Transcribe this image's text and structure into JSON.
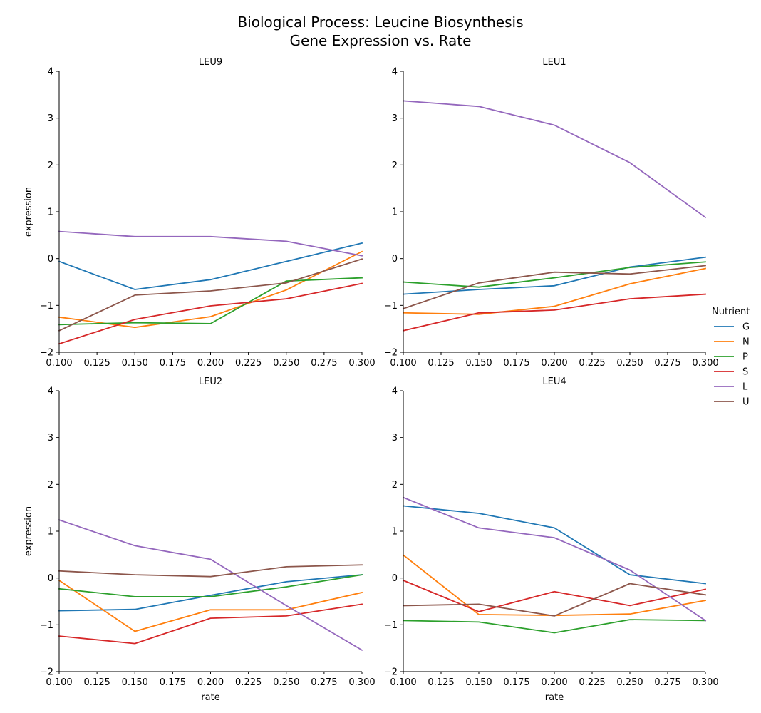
{
  "title_line1": "Biological Process: Leucine Biosynthesis",
  "title_line2": "Gene Expression vs. Rate",
  "legend_title": "Nutrient",
  "xlabel": "rate",
  "ylabel": "expression",
  "chart_data": {
    "type": "line",
    "xlim": [
      0.1,
      0.3
    ],
    "ylim": [
      -2,
      4
    ],
    "xticks": [
      "0.100",
      "0.125",
      "0.150",
      "0.175",
      "0.200",
      "0.225",
      "0.250",
      "0.275",
      "0.300"
    ],
    "yticks": [
      "4",
      "3",
      "2",
      "1",
      "0",
      "−1",
      "−2"
    ],
    "x": [
      0.1,
      0.15,
      0.2,
      0.25,
      0.3
    ],
    "colors": {
      "G": "#1f77b4",
      "N": "#ff7f0e",
      "P": "#2ca02c",
      "S": "#d62728",
      "L": "#9467bd",
      "U": "#8c564b"
    },
    "legend": [
      "G",
      "N",
      "P",
      "S",
      "L",
      "U"
    ],
    "panels": [
      {
        "title": "LEU9",
        "series": [
          {
            "name": "G",
            "values": [
              -0.06,
              -0.66,
              -0.45,
              -0.06,
              0.33
            ]
          },
          {
            "name": "N",
            "values": [
              -1.25,
              -1.47,
              -1.24,
              -0.67,
              0.15
            ]
          },
          {
            "name": "P",
            "values": [
              -1.41,
              -1.37,
              -1.39,
              -0.48,
              -0.41
            ]
          },
          {
            "name": "S",
            "values": [
              -1.82,
              -1.3,
              -1.01,
              -0.86,
              -0.53
            ]
          },
          {
            "name": "L",
            "values": [
              0.58,
              0.47,
              0.47,
              0.37,
              0.06
            ]
          },
          {
            "name": "U",
            "values": [
              -1.54,
              -0.78,
              -0.69,
              -0.52,
              -0.01
            ]
          }
        ]
      },
      {
        "title": "LEU1",
        "series": [
          {
            "name": "G",
            "values": [
              -0.76,
              -0.66,
              -0.58,
              -0.18,
              0.03
            ]
          },
          {
            "name": "N",
            "values": [
              -1.16,
              -1.19,
              -1.02,
              -0.54,
              -0.21
            ]
          },
          {
            "name": "P",
            "values": [
              -0.5,
              -0.61,
              -0.41,
              -0.19,
              -0.07
            ]
          },
          {
            "name": "S",
            "values": [
              -1.54,
              -1.16,
              -1.1,
              -0.86,
              -0.76
            ]
          },
          {
            "name": "L",
            "values": [
              3.37,
              3.25,
              2.85,
              2.05,
              0.88
            ]
          },
          {
            "name": "U",
            "values": [
              -1.07,
              -0.52,
              -0.29,
              -0.33,
              -0.15
            ]
          }
        ]
      },
      {
        "title": "LEU2",
        "series": [
          {
            "name": "G",
            "values": [
              -0.7,
              -0.67,
              -0.37,
              -0.08,
              0.07
            ]
          },
          {
            "name": "N",
            "values": [
              -0.05,
              -1.14,
              -0.68,
              -0.68,
              -0.31
            ]
          },
          {
            "name": "P",
            "values": [
              -0.23,
              -0.4,
              -0.4,
              -0.19,
              0.07
            ]
          },
          {
            "name": "S",
            "values": [
              -1.24,
              -1.4,
              -0.86,
              -0.81,
              -0.56
            ]
          },
          {
            "name": "L",
            "values": [
              1.24,
              0.69,
              0.4,
              -0.59,
              -1.54
            ]
          },
          {
            "name": "U",
            "values": [
              0.15,
              0.07,
              0.03,
              0.24,
              0.28
            ]
          }
        ]
      },
      {
        "title": "LEU4",
        "series": [
          {
            "name": "G",
            "values": [
              1.54,
              1.38,
              1.07,
              0.07,
              -0.12
            ]
          },
          {
            "name": "N",
            "values": [
              0.49,
              -0.78,
              -0.8,
              -0.77,
              -0.48
            ]
          },
          {
            "name": "P",
            "values": [
              -0.91,
              -0.94,
              -1.17,
              -0.89,
              -0.91
            ]
          },
          {
            "name": "S",
            "values": [
              -0.05,
              -0.72,
              -0.29,
              -0.59,
              -0.24
            ]
          },
          {
            "name": "L",
            "values": [
              1.72,
              1.07,
              0.86,
              0.17,
              -0.91
            ]
          },
          {
            "name": "U",
            "values": [
              -0.59,
              -0.56,
              -0.81,
              -0.12,
              -0.36
            ]
          }
        ]
      }
    ]
  }
}
